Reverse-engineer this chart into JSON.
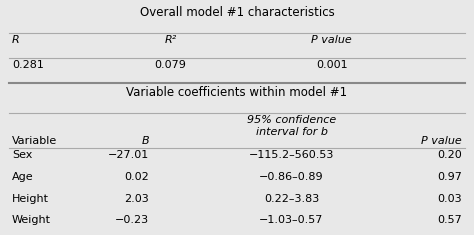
{
  "title1": "Overall model #1 characteristics",
  "title2": "Variable coefficients within model #1",
  "top_headers": [
    "R",
    "R²",
    "P value"
  ],
  "top_data": [
    "0.281",
    "0.079",
    "0.001"
  ],
  "bot_header1": "Variable",
  "bot_header2": "B",
  "bot_header3": "95% confidence\ninterval for b",
  "bot_header4": "P value",
  "data_rows": [
    [
      "Sex",
      "−27.01",
      "−115.2–560.53",
      "0.20"
    ],
    [
      "Age",
      "0.02",
      "−0.86–0.89",
      "0.97"
    ],
    [
      "Height",
      "2.03",
      "0.22–3.83",
      "0.03"
    ],
    [
      "Weight",
      "−0.23",
      "−1.03–0.57",
      "0.57"
    ]
  ],
  "bg_color": "#e8e8e8",
  "font_size": 8.0,
  "title_font_size": 8.5,
  "line_color": "#aaaaaa",
  "thick_line_color": "#888888"
}
